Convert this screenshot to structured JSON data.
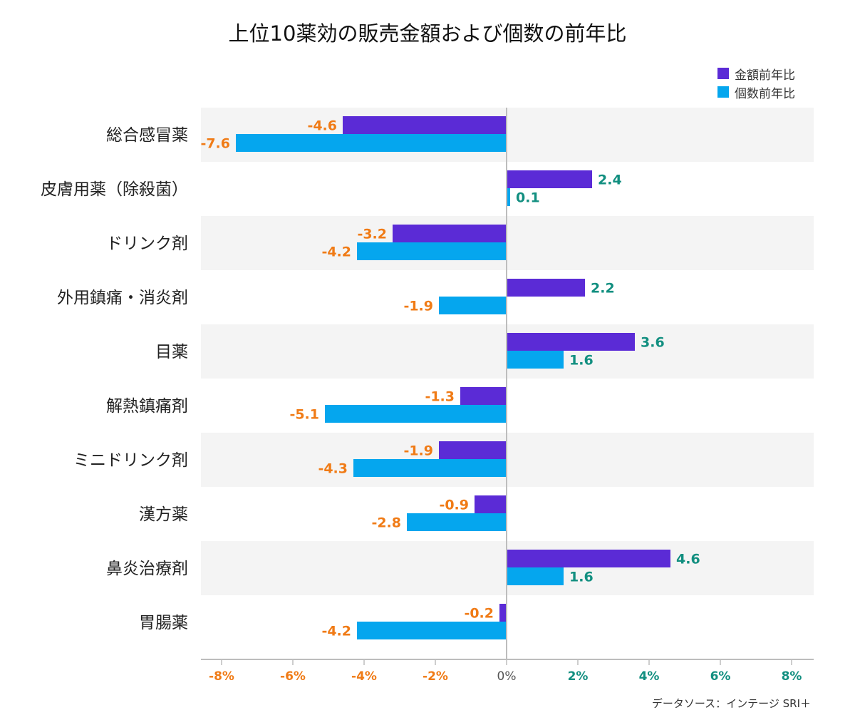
{
  "chart_data": {
    "type": "bar",
    "orientation": "horizontal",
    "title": "上位10薬効の販売金額および個数の前年比",
    "categories": [
      "総合感冒薬",
      "皮膚用薬（除殺菌）",
      "ドリンク剤",
      "外用鎮痛・消炎剤",
      "目薬",
      "解熱鎮痛剤",
      "ミニドリンク剤",
      "漢方薬",
      "鼻炎治療剤",
      "胃腸薬"
    ],
    "series": [
      {
        "name": "金額前年比",
        "color": "#5b2bd6",
        "values": [
          -4.6,
          2.4,
          -3.2,
          2.2,
          3.6,
          -1.3,
          -1.9,
          -0.9,
          4.6,
          -0.2
        ]
      },
      {
        "name": "個数前年比",
        "color": "#05a6ee",
        "values": [
          -7.6,
          0.1,
          -4.2,
          -1.9,
          1.6,
          -5.1,
          -4.3,
          -2.8,
          1.6,
          -4.2
        ]
      }
    ],
    "value_labels": {
      "金額前年比": [
        "-4.6",
        "2.4",
        "-3.2",
        "2.2",
        "3.6",
        "-1.3",
        "-1.9",
        "-0.9",
        "4.6",
        "-0.2"
      ],
      "個数前年比": [
        "-7.6",
        "0.1",
        "-4.2",
        "-1.9",
        "1.6",
        "-5.1",
        "-4.3",
        "-2.8",
        "1.6",
        "-4.2"
      ]
    },
    "xlim": [
      -8,
      8
    ],
    "xticks": [
      -8,
      -6,
      -4,
      -2,
      0,
      2,
      4,
      6,
      8
    ],
    "xtick_labels": [
      "-8%",
      "-6%",
      "-4%",
      "-2%",
      "0%",
      "2%",
      "4%",
      "6%",
      "8%"
    ],
    "legend_position": "top-right",
    "grid": false,
    "negative_label_color": "#f07b16",
    "positive_label_color": "#128f80",
    "zero_label_color": "#555555",
    "row_band_color": "#f4f4f4"
  },
  "source_note": "データソース：インテージ SRI＋"
}
